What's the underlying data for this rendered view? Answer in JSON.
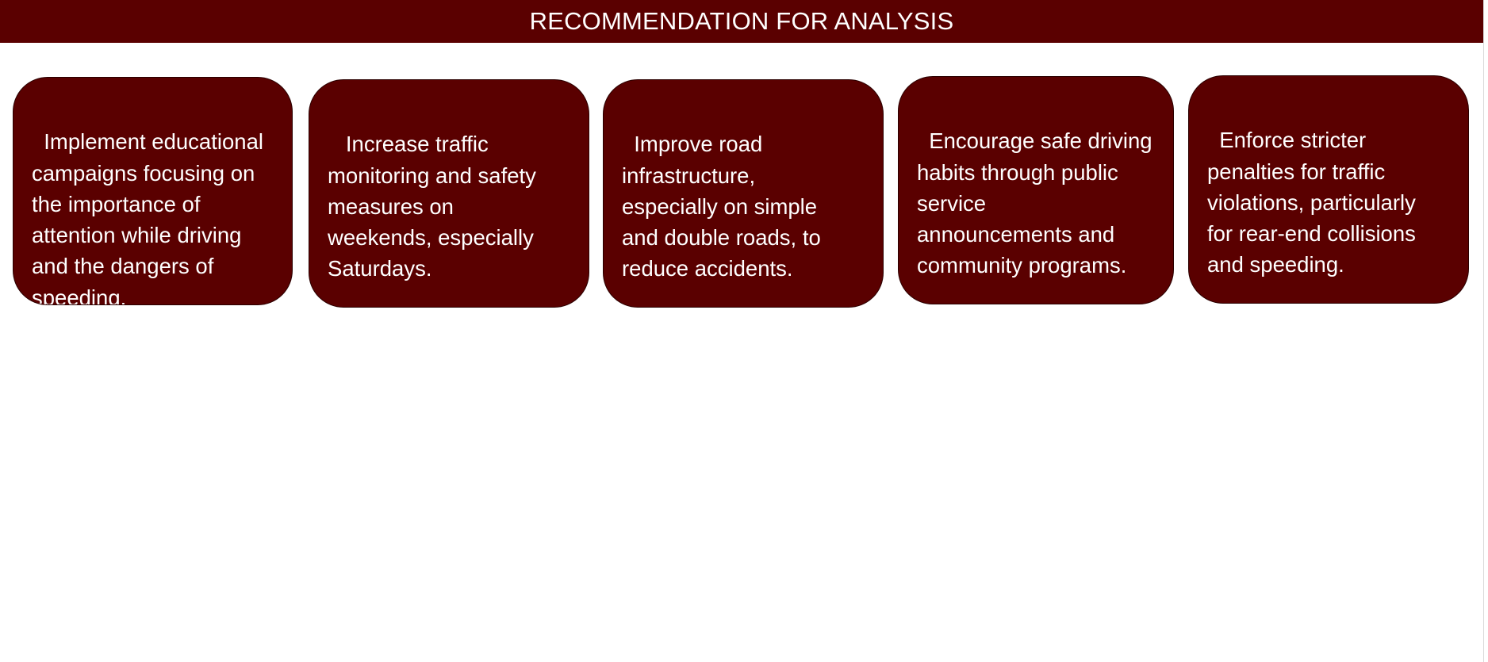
{
  "header": {
    "title": "RECOMMENDATION FOR ANALYSIS"
  },
  "colors": {
    "card_background": "#5a0000",
    "header_background": "#5a0000",
    "text": "#ffffff"
  },
  "recommendations": [
    {
      "text": "Implement educational\ncampaigns focusing on\nthe importance of\nattention while driving\nand the dangers of\nspeeding."
    },
    {
      "text": " Increase traffic\nmonitoring and safety\nmeasures on\nweekends, especially\nSaturdays."
    },
    {
      "text": "Improve road\ninfrastructure,\nespecially on simple\nand double roads, to\nreduce accidents."
    },
    {
      "text": "Encourage safe driving\nhabits through public\nservice\nannouncements and\ncommunity programs."
    },
    {
      "text": "Enforce stricter\npenalties for traffic\nviolations, particularly\nfor rear-end collisions\nand speeding."
    }
  ]
}
